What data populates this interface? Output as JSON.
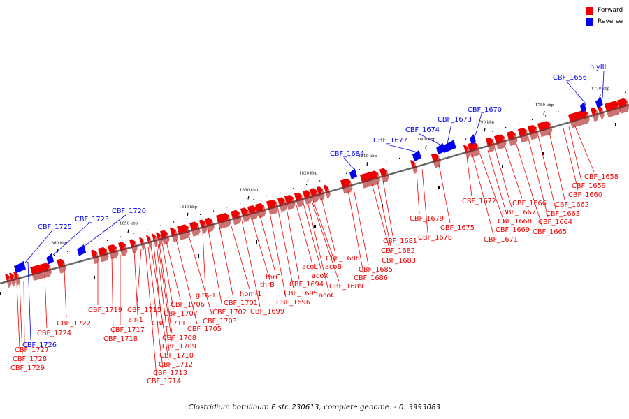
{
  "legend": {
    "items": [
      {
        "label": "Forward",
        "color": "#ee0000"
      },
      {
        "label": "Reverse",
        "color": "#0000ee"
      }
    ]
  },
  "caption": "Clostridium botulinum F str. 230613, complete genome. - 0..3993083",
  "colors": {
    "forward": "#ee0000",
    "forward_dark": "#a00000",
    "reverse": "#0000ee",
    "backbone": "#666666",
    "tick": "#000000"
  },
  "ticks": [
    "1860 kbp",
    "1850 kbp",
    "1840 kbp",
    "1830 kbp",
    "1820 kbp",
    "1810 kbp",
    "1800 kbp",
    "1790 kbp",
    "1780 kbp",
    "1770 kbp"
  ],
  "genes": {
    "forward": [
      "CBF_1729",
      "CBF_1728",
      "CBF_1727",
      "CBF_1724",
      "CBF_1722",
      "CBF_1719",
      "CBF_1718",
      "CBF_1717",
      "alr-1",
      "CBF_1715",
      "CBF_1714",
      "CBF_1713",
      "CBF_1712",
      "CBF_1711",
      "CBF_1710",
      "CBF_1709",
      "CBF_1708",
      "CBF_1707",
      "CBF_1706",
      "CBF_1705",
      "CBF_1703",
      "gltA-1",
      "CBF_1702",
      "CBF_1701",
      "hom-1",
      "CBF_1699",
      "thrB",
      "thrC",
      "CBF_1696",
      "CBF_1695",
      "CBF_1694",
      "acoL",
      "acoC",
      "acoX",
      "CBF_1689",
      "acoB",
      "CBF_1688",
      "CBF_1686",
      "CBF_1685",
      "CBF_1683",
      "CBF_1682",
      "CBF_1681",
      "CBF_1679",
      "CBF_1678",
      "CBF_1675",
      "CBF_1672",
      "CBF_1671",
      "CBF_1669",
      "CBF_1668",
      "CBF_1667",
      "CBF_1666",
      "CBF_1665",
      "CBF_1664",
      "CBF_1663",
      "CBF_1662",
      "CBF_1660",
      "CBF_1659",
      "CBF_1658"
    ],
    "reverse": [
      "CBF_1726",
      "CBF_1725",
      "CBF_1723",
      "CBF_1720",
      "CBF_1684",
      "CBF_1677",
      "CBF_1674",
      "CBF_1673",
      "CBF_1670",
      "CBF_1656",
      "hlyIII"
    ]
  }
}
